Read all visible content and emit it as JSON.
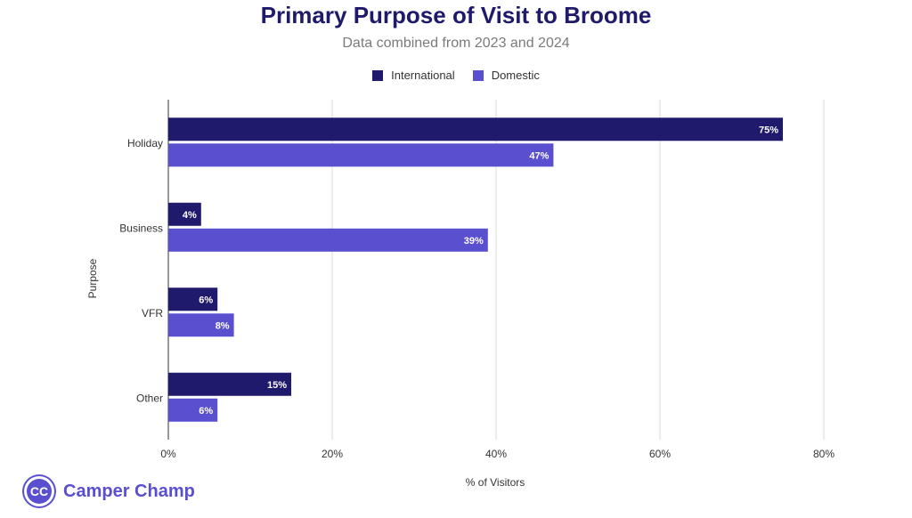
{
  "chart_data": {
    "type": "bar",
    "orientation": "horizontal",
    "title": "Primary Purpose of Visit to Broome",
    "subtitle": "Data combined from 2023 and 2024",
    "xlabel": "% of Visitors",
    "ylabel": "Purpose",
    "categories": [
      "Holiday",
      "Business",
      "VFR",
      "Other"
    ],
    "series": [
      {
        "name": "International",
        "color": "#1f1a6b",
        "values": [
          75,
          4,
          6,
          15
        ],
        "labels": [
          "75%",
          "4%",
          "6%",
          "15%"
        ]
      },
      {
        "name": "Domestic",
        "color": "#5a4fcf",
        "values": [
          47,
          39,
          8,
          6
        ],
        "labels": [
          "47%",
          "39%",
          "8%",
          "6%"
        ]
      }
    ],
    "xlim": [
      0,
      80
    ],
    "xticks": [
      0,
      20,
      40,
      60,
      80
    ],
    "xtick_labels": [
      "0%",
      "20%",
      "40%",
      "60%",
      "80%"
    ],
    "grid": true,
    "legend_position": "top-center"
  },
  "brand": {
    "logo_text": "Camper Champ",
    "logo_initials": "CC",
    "color": "#5a4fcf"
  }
}
